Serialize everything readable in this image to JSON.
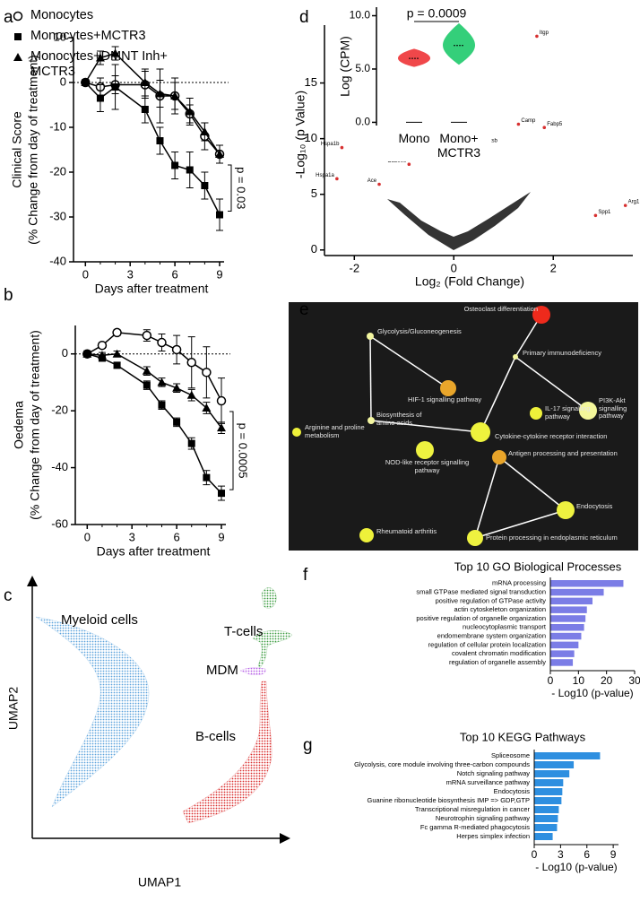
{
  "chart_data": [
    {
      "type": "line",
      "panel": "a",
      "legend": true,
      "ylabel": [
        "Clinical Score",
        "(% Change from day of treatment)"
      ],
      "xlabel": "Days after treatment",
      "x": [
        0,
        1,
        2,
        4,
        5,
        6,
        7,
        8,
        9
      ],
      "xlim": [
        -0.8,
        9.3
      ],
      "xticks": [
        0,
        3,
        6,
        9
      ],
      "ylim": [
        -40,
        10
      ],
      "yticks": [
        -40,
        -30,
        -20,
        -10,
        0,
        10
      ],
      "reference_line": 0,
      "annotation": "p = 0.03",
      "series": [
        {
          "name": "Monocytes",
          "marker": "circle",
          "color": "#000000",
          "values": [
            0,
            -1,
            -0.5,
            -0.5,
            -3,
            -3,
            -7,
            -12,
            -16
          ],
          "errors": [
            0,
            2,
            2,
            3,
            6,
            4,
            2,
            3,
            2
          ]
        },
        {
          "name": "Monocytes+MCTR3",
          "marker": "square",
          "color": "#000000",
          "values": [
            0,
            -3.5,
            -1,
            -6,
            -13,
            -18.5,
            -19.5,
            -23,
            -29.5
          ],
          "errors": [
            0,
            3,
            5,
            3,
            3,
            3,
            4,
            3,
            3.5
          ]
        },
        {
          "name": "Monocytes+DMNT Inh+ MCTR3",
          "marker": "triangle",
          "color": "#000000",
          "values": [
            0,
            5.5,
            6.5,
            0,
            -2.5,
            -3,
            -6.5,
            -11,
            -16
          ],
          "errors": [
            0,
            1.5,
            1.5,
            3,
            3,
            3,
            3,
            2,
            2
          ]
        }
      ]
    },
    {
      "type": "line",
      "panel": "b",
      "legend": false,
      "ylabel": [
        "Oedema",
        "(% Change from day of treatment)"
      ],
      "xlabel": "Days after treatment",
      "x": [
        0,
        1,
        2,
        4,
        5,
        6,
        7,
        8,
        9
      ],
      "xlim": [
        -0.8,
        9.3
      ],
      "xticks": [
        0,
        3,
        6,
        9
      ],
      "ylim": [
        -60,
        10
      ],
      "yticks": [
        -60,
        -40,
        -20,
        0
      ],
      "reference_line": 0,
      "annotation": "p = 0.0005",
      "series": [
        {
          "name": "Monocytes",
          "marker": "circle",
          "color": "#000000",
          "values": [
            0,
            3,
            7.5,
            6.5,
            4,
            1.5,
            -3,
            -6.5,
            -16.5
          ],
          "errors": [
            0,
            1,
            1,
            2,
            3,
            5,
            9,
            9,
            8
          ]
        },
        {
          "name": "Monocytes+MCTR3",
          "marker": "square",
          "color": "#000000",
          "values": [
            0,
            -1.5,
            -4,
            -11,
            -18,
            -24,
            -31.5,
            -43.5,
            -49
          ],
          "errors": [
            0,
            1,
            1,
            1.5,
            1.5,
            1.5,
            2,
            2.5,
            2.5
          ]
        },
        {
          "name": "Monocytes+DMNT Inh+ MCTR3",
          "marker": "triangle",
          "color": "#000000",
          "values": [
            0,
            -0.5,
            0,
            -6,
            -10,
            -12,
            -14.5,
            -19,
            -26
          ],
          "errors": [
            0,
            1,
            1,
            1.5,
            1.5,
            1.5,
            2,
            2,
            2
          ]
        }
      ]
    },
    {
      "type": "umap",
      "panel": "c",
      "xlabel": "UMAP1",
      "ylabel": "UMAP2",
      "clusters": [
        {
          "name": "Myeloid cells",
          "color": "#5ba3dc"
        },
        {
          "name": "T-cells",
          "color": "#3a9b3f"
        },
        {
          "name": "MDM",
          "color": "#b55ee6"
        },
        {
          "name": "B-cells",
          "color": "#d92b2b"
        }
      ]
    },
    {
      "type": "scatter",
      "panel": "d",
      "xlabel": "Log₂ (Fold Change)",
      "ylabel": "-Log₁₀ (p Value)",
      "xlim": [
        -2.6,
        3.6
      ],
      "xticks": [
        -2,
        0,
        2
      ],
      "ylim": [
        -0.5,
        20.2
      ],
      "yticks": [
        0,
        5,
        10,
        15
      ],
      "color": "#d73030",
      "point_labels": [
        "Itgp",
        "Camp",
        "Fabp5",
        "Ctsb",
        "Hspa1b",
        "Cd300e",
        "Hspa1a",
        "Ace",
        "Spp1",
        "Arg1"
      ],
      "x": [
        1.67,
        1.3,
        1.82,
        0.6,
        -2.25,
        -0.9,
        -2.35,
        -1.5,
        2.85,
        3.45
      ],
      "values": [
        19.2,
        11.3,
        11.0,
        9.5,
        9.2,
        7.7,
        6.4,
        5.9,
        3.1,
        4.0
      ]
    },
    {
      "type": "violin",
      "ylabel": "Log (CPM)",
      "annotation": "p = 0.0009",
      "categories": [
        "Mono",
        "Mono+ MCTR3"
      ],
      "colors": [
        "#f0474a",
        "#34cf7a"
      ],
      "min": [
        5.2,
        5.4
      ],
      "max": [
        6.9,
        9.3
      ],
      "medians": [
        6.0,
        7.2
      ],
      "ylim": [
        -0.3,
        10.8
      ],
      "yticks": [
        {
          "value": 0,
          "label": "0.0"
        },
        {
          "value": 5,
          "label": "5.0"
        },
        {
          "value": 10,
          "label": "10.0"
        }
      ]
    },
    {
      "type": "network",
      "panel": "e",
      "nodes": [
        {
          "label": "Osteoclast differentiation",
          "color": "#ee2a1c"
        },
        {
          "label": "Glycolysis/Gluconeogenesis",
          "color": "#f3f6a0"
        },
        {
          "label": "Primary immunodeficiency",
          "color": "#f3f6a0"
        },
        {
          "label": "HIF-1 signalling pathway",
          "color": "#e9a62b"
        },
        {
          "label": "Biosynthesis of amino acids",
          "color": "#f3f6a0"
        },
        {
          "label": "IL-17 signalling pathway",
          "color": "#eef13a"
        },
        {
          "label": "PI3K-Akt signalling pathway",
          "color": "#f4f79a"
        },
        {
          "label": "Cytokine-cytokine receptor interaction",
          "color": "#eef33d"
        },
        {
          "label": "Arginine and proline metabolism",
          "color": "#eef13a"
        },
        {
          "label": "NOD-like receptor signalling pathway",
          "color": "#eef240"
        },
        {
          "label": "Antigen processing and presentation",
          "color": "#e9a52a"
        },
        {
          "label": "Endocytosis",
          "color": "#eef240"
        },
        {
          "label": "Rheumatoid arthritis",
          "color": "#eef13a"
        },
        {
          "label": "Protein processing in endoplasmic reticulum",
          "color": "#eef240"
        }
      ],
      "edges": [
        [
          1,
          4
        ],
        [
          1,
          3
        ],
        [
          0,
          2
        ],
        [
          2,
          7
        ],
        [
          2,
          6
        ],
        [
          4,
          7
        ],
        [
          10,
          11
        ],
        [
          10,
          13
        ],
        [
          11,
          13
        ]
      ]
    },
    {
      "type": "bar",
      "panel": "f",
      "title": "Top 10 GO Biological Processes",
      "xlabel": "- Log10 (p-value)",
      "categories": [
        "mRNA processing",
        "small GTPase mediated signal transduction",
        "positive regulation of GTPase activity",
        "actin cytoskeleton organization",
        "positive regulation of organelle organization",
        "nucleocytoplasmic transport",
        "endomembrane system organization",
        "regulation of cellular protein localization",
        "covalent chromatin modification",
        "regulation of organelle assembly"
      ],
      "values": [
        26,
        19,
        15,
        13,
        12.5,
        12,
        11,
        10,
        8.5,
        8
      ],
      "color": "#7b7de6",
      "xlim": [
        0,
        30
      ],
      "xticks": [
        0,
        10,
        20,
        30
      ]
    },
    {
      "type": "bar",
      "panel": "g",
      "title": "Top 10 KEGG Pathways",
      "xlabel": "- Log10 (p-value)",
      "categories": [
        "Spliceosome",
        "Glycolysis, core module involving three-carbon compounds",
        "Notch signaling pathway",
        "mRNA surveillance pathway",
        "Endocytosis",
        "Guanine ribonucleotide biosynthesis IMP => GDP,GTP",
        "Transcriptional misregulation in cancer",
        "Neurotrophin signaling pathway",
        "Fc gamma R-mediated phagocytosis",
        "Herpes simplex infection"
      ],
      "values": [
        7.5,
        4.5,
        4.0,
        3.3,
        3.2,
        3.1,
        2.8,
        2.7,
        2.6,
        2.1
      ],
      "color": "#2e8fe0",
      "xlim": [
        0,
        9.6
      ],
      "xticks": [
        0,
        3,
        6,
        9
      ]
    }
  ]
}
